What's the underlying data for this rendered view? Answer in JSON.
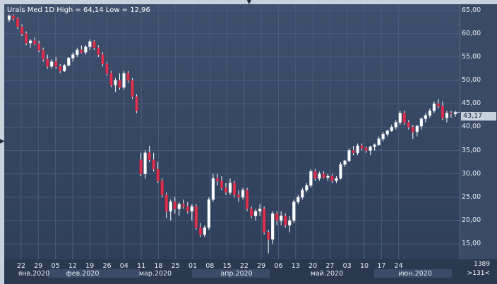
{
  "header": {
    "title": "Urals Med 1D High = 64,14 Low = 12,96"
  },
  "price_tag": "43,17",
  "corner": {
    "top": "1389",
    "bottom": ">131<"
  },
  "colors": {
    "bull": "#ffffff",
    "bear": "#e0304e",
    "wick": "#ffffff",
    "grid": "#4b5c7a"
  },
  "chart_data": {
    "type": "candlestick",
    "ylim": [
      12,
      66
    ],
    "y_ticks": [
      "15,00",
      "20,00",
      "25,00",
      "30,00",
      "35,00",
      "40,00",
      "45,00",
      "50,00",
      "55,00",
      "60,00",
      "65,00"
    ],
    "x_ticks": [
      "22",
      "29",
      "05",
      "12",
      "19",
      "26",
      "04",
      "11",
      "18",
      "25",
      "01",
      "08",
      "15",
      "22",
      "29",
      "06",
      "13",
      "20",
      "27",
      "03",
      "10",
      "17",
      "24"
    ],
    "months": [
      "янв.2020",
      "фев.2020",
      "мар.2020",
      "апр.2020",
      "май.2020",
      "июн.2020"
    ],
    "ohlc": [
      [
        63.0,
        64.1,
        62.5,
        63.8
      ],
      [
        63.8,
        64.1,
        62.8,
        63.2
      ],
      [
        63.2,
        63.5,
        61.0,
        61.5
      ],
      [
        61.5,
        62.0,
        59.5,
        60.0
      ],
      [
        60.0,
        60.5,
        57.5,
        58.0
      ],
      [
        58.0,
        58.8,
        57.0,
        58.5
      ],
      [
        58.5,
        59.2,
        57.5,
        57.8
      ],
      [
        57.8,
        58.5,
        56.0,
        56.5
      ],
      [
        56.5,
        57.0,
        54.0,
        54.5
      ],
      [
        54.5,
        55.5,
        52.5,
        53.0
      ],
      [
        53.0,
        54.5,
        52.5,
        54.0
      ],
      [
        54.0,
        55.0,
        52.5,
        53.0
      ],
      [
        53.0,
        53.5,
        51.5,
        52.0
      ],
      [
        52.0,
        53.5,
        51.8,
        53.2
      ],
      [
        53.2,
        55.0,
        53.0,
        54.8
      ],
      [
        54.8,
        56.0,
        54.0,
        55.5
      ],
      [
        55.5,
        57.0,
        55.0,
        56.5
      ],
      [
        56.5,
        57.5,
        55.8,
        56.0
      ],
      [
        56.0,
        57.5,
        55.5,
        57.2
      ],
      [
        57.2,
        58.8,
        56.5,
        58.3
      ],
      [
        58.3,
        58.6,
        56.5,
        57.0
      ],
      [
        57.0,
        57.5,
        55.0,
        55.5
      ],
      [
        55.5,
        56.0,
        53.0,
        53.5
      ],
      [
        53.5,
        54.0,
        51.0,
        51.5
      ],
      [
        51.5,
        52.0,
        48.5,
        49.0
      ],
      [
        49.0,
        50.5,
        47.5,
        50.0
      ],
      [
        50.0,
        51.5,
        48.0,
        48.5
      ],
      [
        48.5,
        52.0,
        48.0,
        51.5
      ],
      [
        51.5,
        52.0,
        49.5,
        50.0
      ],
      [
        50.0,
        50.5,
        46.0,
        46.5
      ],
      [
        46.5,
        47.0,
        43.0,
        43.5
      ],
      [
        33.0,
        34.5,
        29.5,
        30.0
      ],
      [
        30.0,
        35.0,
        29.0,
        34.5
      ],
      [
        34.5,
        36.0,
        32.5,
        33.0
      ],
      [
        33.0,
        34.5,
        30.5,
        31.0
      ],
      [
        31.0,
        32.5,
        28.0,
        28.5
      ],
      [
        28.5,
        29.0,
        25.0,
        25.5
      ],
      [
        25.5,
        26.0,
        20.5,
        22.0
      ],
      [
        22.0,
        24.5,
        20.0,
        24.0
      ],
      [
        24.0,
        25.0,
        21.5,
        22.5
      ],
      [
        22.5,
        24.0,
        21.0,
        23.5
      ],
      [
        23.5,
        24.5,
        22.5,
        23.0
      ],
      [
        23.0,
        24.0,
        21.5,
        22.0
      ],
      [
        22.0,
        23.5,
        20.0,
        23.0
      ],
      [
        23.0,
        23.5,
        18.0,
        18.5
      ],
      [
        18.5,
        19.5,
        16.5,
        17.0
      ],
      [
        17.0,
        19.0,
        16.5,
        18.5
      ],
      [
        18.5,
        25.0,
        18.0,
        24.5
      ],
      [
        24.5,
        30.0,
        24.0,
        29.0
      ],
      [
        29.0,
        30.0,
        27.5,
        28.5
      ],
      [
        28.5,
        29.5,
        26.5,
        27.0
      ],
      [
        27.0,
        28.0,
        25.5,
        26.0
      ],
      [
        26.0,
        29.0,
        25.5,
        28.0
      ],
      [
        28.0,
        28.5,
        25.0,
        25.5
      ],
      [
        25.5,
        26.5,
        24.0,
        25.0
      ],
      [
        25.0,
        27.0,
        24.5,
        26.5
      ],
      [
        26.5,
        27.0,
        22.0,
        22.5
      ],
      [
        22.5,
        23.0,
        20.5,
        21.0
      ],
      [
        21.0,
        22.5,
        20.0,
        22.0
      ],
      [
        22.0,
        23.5,
        21.0,
        22.5
      ],
      [
        22.5,
        23.0,
        17.0,
        17.5
      ],
      [
        17.5,
        18.0,
        12.96,
        16.0
      ],
      [
        16.0,
        22.0,
        15.0,
        21.5
      ],
      [
        21.5,
        22.0,
        19.0,
        20.0
      ],
      [
        20.0,
        22.0,
        19.0,
        21.0
      ],
      [
        21.0,
        21.5,
        18.5,
        19.0
      ],
      [
        19.0,
        21.0,
        17.5,
        20.0
      ],
      [
        20.0,
        24.5,
        19.5,
        24.0
      ],
      [
        24.0,
        25.5,
        23.5,
        25.0
      ],
      [
        25.0,
        27.0,
        24.5,
        26.5
      ],
      [
        26.5,
        28.0,
        26.0,
        27.5
      ],
      [
        27.5,
        31.0,
        27.0,
        30.5
      ],
      [
        30.5,
        31.0,
        28.5,
        29.0
      ],
      [
        29.0,
        30.5,
        28.5,
        30.0
      ],
      [
        30.0,
        30.5,
        29.0,
        29.2
      ],
      [
        29.2,
        30.0,
        28.5,
        29.5
      ],
      [
        29.5,
        30.0,
        28.0,
        28.5
      ],
      [
        28.5,
        29.5,
        28.0,
        29.0
      ],
      [
        29.0,
        32.5,
        28.8,
        32.0
      ],
      [
        32.0,
        33.0,
        31.5,
        32.8
      ],
      [
        32.8,
        35.5,
        32.5,
        35.0
      ],
      [
        35.0,
        36.0,
        34.0,
        34.5
      ],
      [
        34.5,
        36.5,
        34.0,
        36.0
      ],
      [
        36.0,
        36.5,
        35.0,
        35.5
      ],
      [
        35.5,
        35.8,
        34.5,
        35.0
      ],
      [
        35.0,
        36.0,
        34.0,
        35.8
      ],
      [
        35.8,
        36.5,
        35.0,
        36.2
      ],
      [
        36.2,
        38.0,
        36.0,
        37.5
      ],
      [
        37.5,
        39.0,
        37.0,
        38.5
      ],
      [
        38.5,
        39.5,
        38.0,
        39.2
      ],
      [
        39.2,
        40.5,
        39.0,
        40.0
      ],
      [
        40.0,
        41.5,
        39.5,
        41.0
      ],
      [
        41.0,
        43.5,
        40.5,
        43.0
      ],
      [
        43.0,
        43.5,
        40.5,
        41.0
      ],
      [
        41.0,
        41.5,
        39.5,
        40.0
      ],
      [
        40.0,
        40.5,
        37.5,
        39.0
      ],
      [
        39.0,
        40.5,
        38.0,
        40.2
      ],
      [
        40.2,
        42.0,
        39.5,
        41.8
      ],
      [
        41.8,
        43.0,
        41.0,
        42.5
      ],
      [
        42.5,
        44.0,
        42.0,
        43.5
      ],
      [
        43.5,
        45.5,
        43.0,
        45.0
      ],
      [
        45.0,
        46.0,
        44.0,
        44.5
      ],
      [
        44.5,
        45.5,
        41.5,
        42.0
      ],
      [
        42.0,
        43.5,
        41.0,
        43.0
      ],
      [
        43.0,
        43.5,
        42.0,
        42.8
      ],
      [
        42.8,
        43.5,
        42.2,
        43.17
      ]
    ]
  }
}
